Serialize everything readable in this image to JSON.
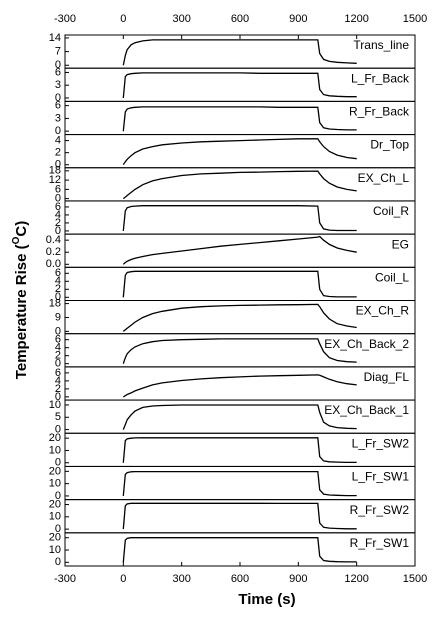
{
  "chart_data": {
    "type": "line",
    "xlabel": "Time (s)",
    "ylabel": [
      "Temperature Rise (",
      "O",
      "C)"
    ],
    "xlim": [
      -300,
      1500
    ],
    "xticks": [
      -300,
      0,
      300,
      600,
      900,
      1200,
      1500
    ],
    "color": "#000000",
    "x": [
      0,
      10,
      20,
      40,
      60,
      100,
      150,
      200,
      300,
      400,
      500,
      600,
      700,
      800,
      900,
      1000,
      1010,
      1030,
      1060,
      1100,
      1150,
      1200
    ],
    "panels": [
      {
        "name": "Trans_line",
        "ylim": [
          -1.5,
          15.5
        ],
        "yticks": [
          0,
          7,
          14
        ],
        "values": [
          0,
          5,
          8,
          10.5,
          11.5,
          12.5,
          13,
          13,
          13,
          13,
          13,
          13,
          13,
          13,
          13,
          13,
          6,
          3,
          2,
          1.5,
          1.2,
          1
        ]
      },
      {
        "name": "L_Fr_Back",
        "ylim": [
          -0.8,
          7
        ],
        "yticks": [
          0,
          3,
          6
        ],
        "values": [
          0,
          5,
          5.5,
          5.7,
          5.8,
          5.9,
          5.9,
          5.9,
          5.9,
          5.9,
          5.9,
          5.9,
          5.8,
          5.8,
          5.8,
          5.8,
          2,
          0.8,
          0.5,
          0.4,
          0.3,
          0.3
        ]
      },
      {
        "name": "R_Fr_Back",
        "ylim": [
          -0.8,
          7
        ],
        "yticks": [
          0,
          3,
          6
        ],
        "values": [
          0,
          4.5,
          5.2,
          5.5,
          5.6,
          5.7,
          5.7,
          5.7,
          5.7,
          5.7,
          5.7,
          5.7,
          5.7,
          5.6,
          5.6,
          5.6,
          2,
          0.8,
          0.5,
          0.4,
          0.3,
          0.3
        ]
      },
      {
        "name": "Dr_Top",
        "ylim": [
          -0.5,
          5
        ],
        "yticks": [
          0,
          2,
          4
        ],
        "values": [
          0,
          0.5,
          0.9,
          1.5,
          2,
          2.6,
          3,
          3.3,
          3.6,
          3.8,
          3.9,
          4,
          4.1,
          4.2,
          4.3,
          4.3,
          3.8,
          3,
          2.2,
          1.6,
          1.2,
          1
        ]
      },
      {
        "name": "EX_Ch_L",
        "ylim": [
          -1.5,
          20
        ],
        "yticks": [
          0,
          6,
          12,
          18
        ],
        "values": [
          0,
          1,
          2,
          4,
          6,
          9,
          11.5,
          13,
          15,
          16,
          16.5,
          17,
          17.2,
          17.5,
          17.7,
          17.8,
          16,
          13,
          10,
          7.5,
          6,
          5
        ]
      },
      {
        "name": "Coil_R",
        "ylim": [
          -0.8,
          7.5
        ],
        "yticks": [
          0,
          2,
          4,
          6
        ],
        "values": [
          0,
          5,
          5.8,
          6.1,
          6.2,
          6.3,
          6.3,
          6.3,
          6.3,
          6.3,
          6.3,
          6.3,
          6.3,
          6.3,
          6.3,
          6.2,
          2,
          0.5,
          0.2,
          0.1,
          0.1,
          0.1
        ]
      },
      {
        "name": "EG",
        "ylim": [
          -0.05,
          0.5
        ],
        "yticks": [
          {
            "value": 0,
            "label": "0.0"
          },
          0.2,
          0.4
        ],
        "values": [
          0,
          0.03,
          0.05,
          0.08,
          0.1,
          0.13,
          0.16,
          0.18,
          0.22,
          0.26,
          0.3,
          0.33,
          0.36,
          0.39,
          0.42,
          0.45,
          0.46,
          0.4,
          0.33,
          0.27,
          0.23,
          0.2
        ]
      },
      {
        "name": "Coil_L",
        "ylim": [
          -0.8,
          7.5
        ],
        "yticks": [
          0,
          2,
          4,
          6
        ],
        "values": [
          0,
          5.5,
          6.2,
          6.4,
          6.5,
          6.5,
          6.5,
          6.5,
          6.5,
          6.5,
          6.5,
          6.5,
          6.5,
          6.5,
          6.5,
          6.5,
          2,
          0.4,
          0.2,
          0.1,
          0.1,
          0.1
        ]
      },
      {
        "name": "EX_Ch_R",
        "ylim": [
          -1.5,
          20
        ],
        "yticks": [
          0,
          9,
          18
        ],
        "values": [
          0,
          1,
          2,
          4,
          6,
          9,
          11.5,
          13,
          15,
          16,
          16.5,
          16.8,
          17,
          17.2,
          17.3,
          17.5,
          16,
          12,
          8,
          5,
          3.5,
          2.5
        ]
      },
      {
        "name": "EX_Ch_Back_2",
        "ylim": [
          -0.8,
          7.5
        ],
        "yticks": [
          0,
          2,
          4,
          6
        ],
        "values": [
          0,
          1.5,
          2.5,
          3.5,
          4.2,
          5,
          5.5,
          5.8,
          6,
          6.1,
          6.2,
          6.2,
          6.2,
          6.2,
          6.2,
          6.2,
          5,
          3,
          1.5,
          0.8,
          0.5,
          0.4
        ]
      },
      {
        "name": "Diag_FL",
        "ylim": [
          -0.8,
          7.5
        ],
        "yticks": [
          0,
          2,
          4,
          6
        ],
        "values": [
          0,
          0.3,
          0.6,
          1,
          1.5,
          2.2,
          3,
          3.5,
          4.1,
          4.5,
          4.8,
          5,
          5.2,
          5.3,
          5.4,
          5.5,
          5.4,
          5,
          4.4,
          3.8,
          3.3,
          3
        ]
      },
      {
        "name": "EX_Ch_Back_1",
        "ylim": [
          -1.5,
          12
        ],
        "yticks": [
          0,
          5,
          10
        ],
        "values": [
          0,
          2,
          4,
          6,
          7.5,
          9,
          9.6,
          9.8,
          10,
          10,
          10,
          10,
          10,
          10,
          10,
          10,
          7,
          3,
          1.5,
          0.8,
          0.5,
          0.4
        ]
      },
      {
        "name": "L_Fr_SW2",
        "ylim": [
          -3,
          24
        ],
        "yticks": [
          0,
          10,
          20
        ],
        "values": [
          0,
          18,
          19.5,
          20,
          20.2,
          20.3,
          20.3,
          20.3,
          20.3,
          20.3,
          20.3,
          20.3,
          20.3,
          20.3,
          20.3,
          20.3,
          5,
          1.5,
          0.8,
          0.5,
          0.3,
          0.3
        ]
      },
      {
        "name": "L_Fr_SW1",
        "ylim": [
          -3,
          24
        ],
        "yticks": [
          0,
          10,
          20
        ],
        "values": [
          0,
          17.5,
          19,
          19.6,
          19.8,
          19.8,
          19.8,
          19.8,
          19.8,
          19.8,
          19.8,
          19.8,
          19.8,
          19.8,
          19.8,
          19.8,
          5,
          1.5,
          0.8,
          0.5,
          0.3,
          0.3
        ]
      },
      {
        "name": "R_Fr_SW2",
        "ylim": [
          -3,
          24
        ],
        "yticks": [
          0,
          10,
          20
        ],
        "values": [
          0,
          19,
          20.5,
          21,
          21,
          21,
          21,
          21,
          21,
          21,
          21,
          21,
          21,
          20.9,
          20.9,
          20.9,
          5,
          1.5,
          0.8,
          0.5,
          0.3,
          0.3
        ]
      },
      {
        "name": "R_Fr_SW1",
        "ylim": [
          -3,
          24
        ],
        "yticks": [
          0,
          10,
          20
        ],
        "values": [
          0,
          18,
          19.5,
          20,
          20,
          20,
          20,
          20,
          20,
          20,
          20,
          20,
          20,
          20,
          20,
          20,
          5,
          1.5,
          0.8,
          0.5,
          0.3,
          0.3
        ]
      }
    ]
  }
}
